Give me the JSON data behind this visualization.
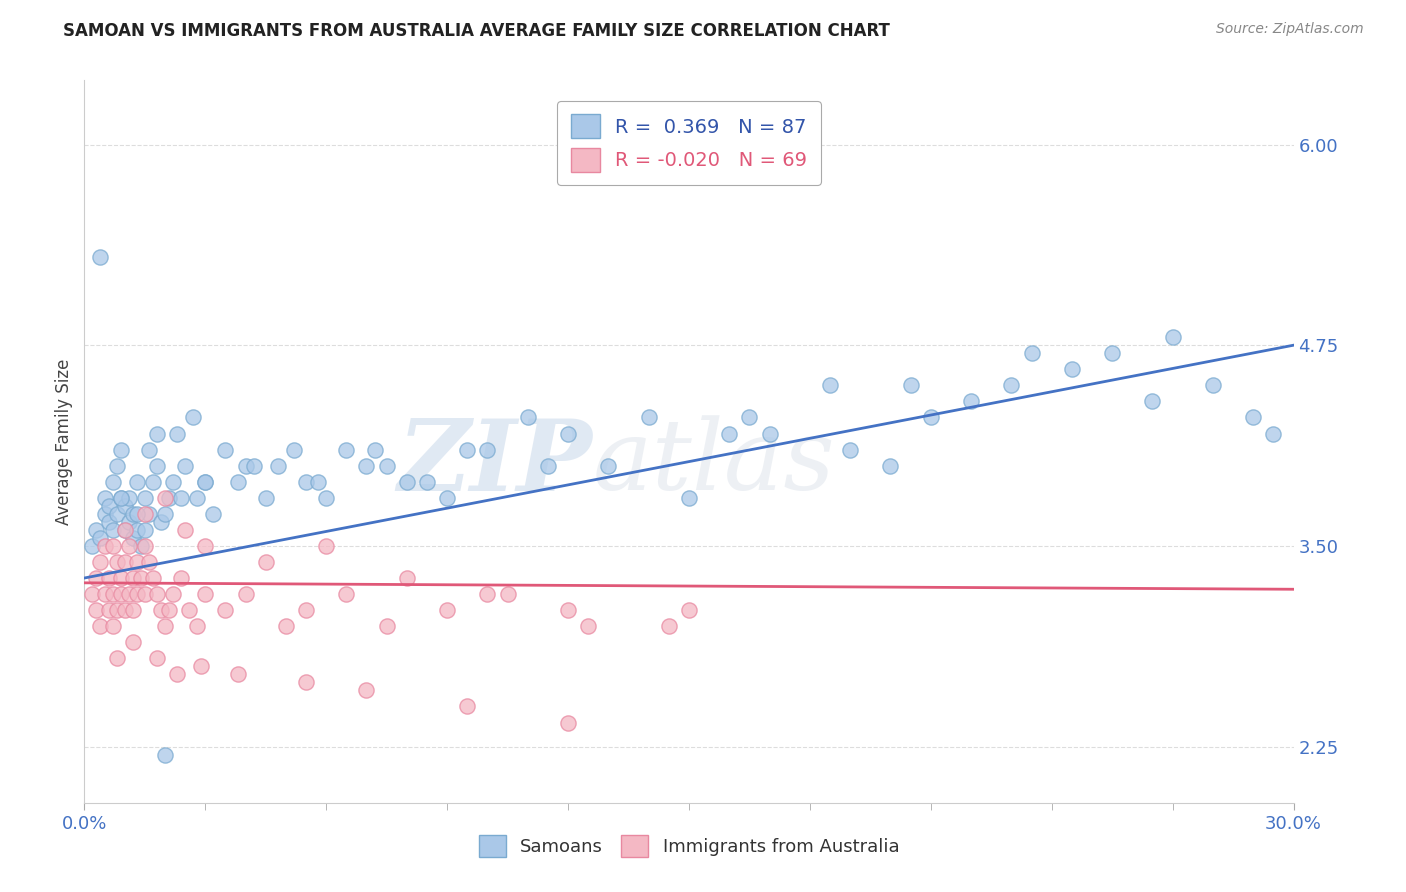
{
  "title": "SAMOAN VS IMMIGRANTS FROM AUSTRALIA AVERAGE FAMILY SIZE CORRELATION CHART",
  "source": "Source: ZipAtlas.com",
  "ylabel": "Average Family Size",
  "y_ticks": [
    2.25,
    3.5,
    4.75,
    6.0
  ],
  "xlim": [
    0.0,
    30.0
  ],
  "ylim": [
    1.9,
    6.4
  ],
  "blue_R": 0.369,
  "blue_N": 87,
  "pink_R": -0.02,
  "pink_N": 69,
  "blue_color": "#aac8e8",
  "blue_edge_color": "#7aaad0",
  "pink_color": "#f4b8c4",
  "pink_edge_color": "#e888a0",
  "blue_line_color": "#4472c4",
  "pink_line_color": "#e05878",
  "watermark_zip": "ZIP",
  "watermark_atlas": "atlas",
  "background_color": "#ffffff",
  "legend_text_color": "#3355aa",
  "title_color": "#222222",
  "source_color": "#888888",
  "tick_label_color": "#4472c4",
  "ylabel_color": "#444444",
  "grid_color": "#dddddd",
  "blue_line_start_y": 3.3,
  "blue_line_end_y": 4.75,
  "pink_line_y": 3.25,
  "blue_scatter_x": [
    0.2,
    0.3,
    0.4,
    0.5,
    0.5,
    0.6,
    0.6,
    0.7,
    0.7,
    0.8,
    0.8,
    0.9,
    0.9,
    1.0,
    1.0,
    1.1,
    1.1,
    1.2,
    1.2,
    1.3,
    1.3,
    1.4,
    1.5,
    1.5,
    1.6,
    1.6,
    1.7,
    1.8,
    1.9,
    2.0,
    2.1,
    2.2,
    2.3,
    2.5,
    2.7,
    2.8,
    3.0,
    3.2,
    3.5,
    4.0,
    4.5,
    5.5,
    6.5,
    7.5,
    8.5,
    10.0,
    12.0,
    14.0,
    17.0,
    18.5,
    20.0,
    22.0,
    24.5,
    27.0,
    28.0,
    29.0,
    3.8,
    4.8,
    5.2,
    6.0,
    7.0,
    8.0,
    9.5,
    11.0,
    13.0,
    15.0,
    16.0,
    19.0,
    21.0,
    23.0,
    25.5,
    0.4,
    0.9,
    1.3,
    1.8,
    2.4,
    3.0,
    4.2,
    5.8,
    7.2,
    9.0,
    11.5,
    16.5,
    20.5,
    23.5,
    26.5,
    29.5,
    2.0
  ],
  "blue_scatter_y": [
    3.5,
    3.6,
    3.55,
    3.7,
    3.8,
    3.65,
    3.75,
    3.6,
    3.9,
    3.7,
    4.0,
    3.8,
    4.1,
    3.6,
    3.75,
    3.8,
    3.65,
    3.55,
    3.7,
    3.6,
    3.9,
    3.5,
    3.6,
    3.8,
    3.7,
    4.1,
    3.9,
    4.0,
    3.65,
    3.7,
    3.8,
    3.9,
    4.2,
    4.0,
    4.3,
    3.8,
    3.9,
    3.7,
    4.1,
    4.0,
    3.8,
    3.9,
    4.1,
    4.0,
    3.9,
    4.1,
    4.2,
    4.3,
    4.2,
    4.5,
    4.0,
    4.4,
    4.6,
    4.8,
    4.5,
    4.3,
    3.9,
    4.0,
    4.1,
    3.8,
    4.0,
    3.9,
    4.1,
    4.3,
    4.0,
    3.8,
    4.2,
    4.1,
    4.3,
    4.5,
    4.7,
    5.3,
    3.8,
    3.7,
    4.2,
    3.8,
    3.9,
    4.0,
    3.9,
    4.1,
    3.8,
    4.0,
    4.3,
    4.5,
    4.7,
    4.4,
    4.2,
    2.2
  ],
  "pink_scatter_x": [
    0.2,
    0.3,
    0.3,
    0.4,
    0.4,
    0.5,
    0.5,
    0.6,
    0.6,
    0.7,
    0.7,
    0.7,
    0.8,
    0.8,
    0.9,
    0.9,
    1.0,
    1.0,
    1.1,
    1.1,
    1.2,
    1.2,
    1.3,
    1.3,
    1.4,
    1.5,
    1.5,
    1.6,
    1.7,
    1.8,
    1.9,
    2.0,
    2.1,
    2.2,
    2.4,
    2.6,
    2.8,
    3.0,
    3.5,
    4.0,
    5.0,
    5.5,
    6.5,
    7.5,
    9.0,
    10.5,
    12.0,
    14.5,
    1.0,
    1.5,
    2.0,
    2.5,
    3.0,
    4.5,
    6.0,
    8.0,
    10.0,
    12.5,
    15.0,
    0.8,
    1.2,
    1.8,
    2.3,
    2.9,
    3.8,
    5.5,
    7.0,
    9.5,
    12.0
  ],
  "pink_scatter_y": [
    3.2,
    3.1,
    3.3,
    3.0,
    3.4,
    3.2,
    3.5,
    3.1,
    3.3,
    3.0,
    3.2,
    3.5,
    3.1,
    3.4,
    3.2,
    3.3,
    3.1,
    3.4,
    3.2,
    3.5,
    3.1,
    3.3,
    3.4,
    3.2,
    3.3,
    3.5,
    3.2,
    3.4,
    3.3,
    3.2,
    3.1,
    3.0,
    3.1,
    3.2,
    3.3,
    3.1,
    3.0,
    3.2,
    3.1,
    3.2,
    3.0,
    3.1,
    3.2,
    3.0,
    3.1,
    3.2,
    3.1,
    3.0,
    3.6,
    3.7,
    3.8,
    3.6,
    3.5,
    3.4,
    3.5,
    3.3,
    3.2,
    3.0,
    3.1,
    2.8,
    2.9,
    2.8,
    2.7,
    2.75,
    2.7,
    2.65,
    2.6,
    2.5,
    2.4
  ]
}
